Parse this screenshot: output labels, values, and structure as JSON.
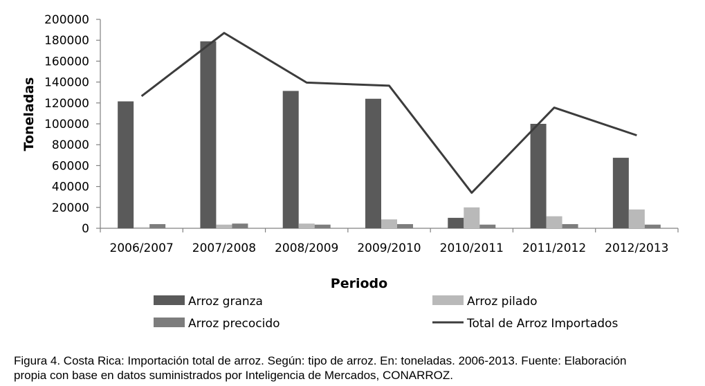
{
  "chart_data": {
    "type": "bar",
    "categories": [
      "2006/2007",
      "2007/2008",
      "2008/2009",
      "2009/2010",
      "2010/2011",
      "2011/2012",
      "2012/2013"
    ],
    "series": [
      {
        "name": "Arroz granza",
        "type": "bar",
        "color": "#5a5a5a",
        "values": [
          121500,
          179000,
          131500,
          124000,
          10000,
          100000,
          67500
        ]
      },
      {
        "name": "Arroz pilado",
        "type": "bar",
        "color": "#b9b9b9",
        "values": [
          1000,
          3500,
          4500,
          8500,
          20000,
          11500,
          18000
        ]
      },
      {
        "name": "Arroz precocido",
        "type": "bar",
        "color": "#7d7d7d",
        "values": [
          4000,
          4500,
          3500,
          4000,
          3500,
          4000,
          3500
        ]
      },
      {
        "name": "Total de Arroz Importados",
        "type": "line",
        "color": "#3c3c3c",
        "values": [
          126500,
          187000,
          139500,
          136500,
          34000,
          115500,
          89000
        ]
      }
    ],
    "xlabel": "Periodo",
    "ylabel": "Toneladas",
    "ylim": [
      0,
      200000
    ],
    "yticks": [
      "0",
      "20000",
      "40000",
      "60000",
      "80000",
      "100000",
      "120000",
      "140000",
      "160000",
      "180000",
      "200000"
    ],
    "grid": false,
    "legend_position": "bottom"
  },
  "caption": {
    "line1": "Figura 4. Costa Rica: Importación total de arroz. Según: tipo de arroz. En: toneladas. 2006-2013. Fuente: Elaboración",
    "line2": "propia con base en datos suministrados por Inteligencia de Mercados, CONARROZ."
  }
}
